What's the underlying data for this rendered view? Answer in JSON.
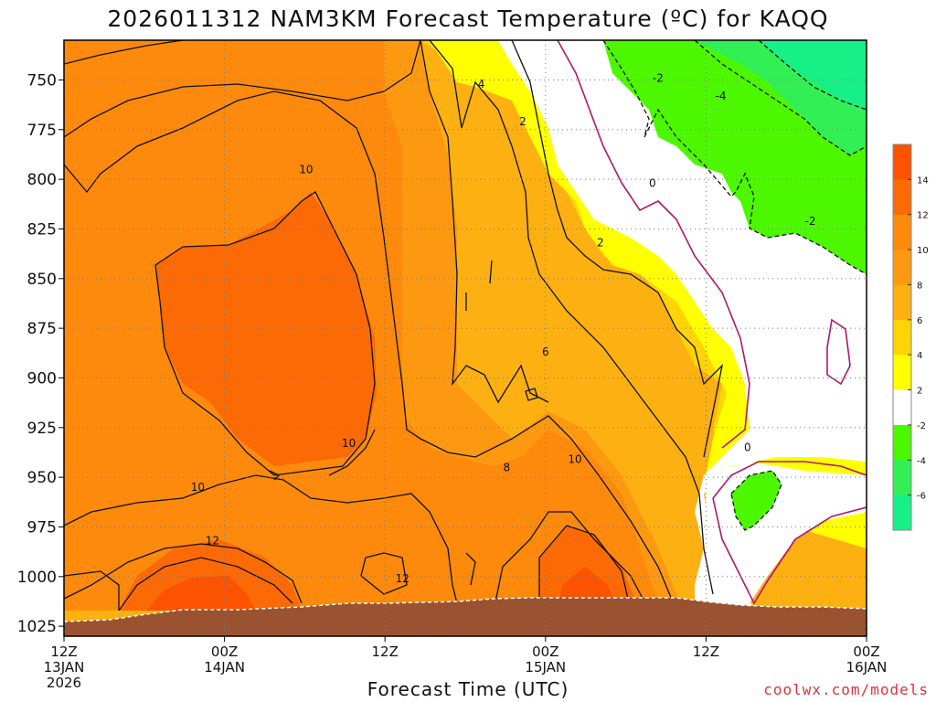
{
  "chart_data": {
    "type": "heatmap",
    "title": "2026011312 NAM3KM Forecast Temperature (ºC) for KAQQ",
    "xlabel": "Forecast Time (UTC)",
    "ylabel": "",
    "credit": "coolwx.com/models",
    "y_axis": {
      "range": [
        1030,
        730
      ],
      "ticks": [
        750,
        775,
        800,
        825,
        850,
        875,
        900,
        925,
        950,
        975,
        1000,
        1025
      ]
    },
    "x_axis": {
      "range_hours": [
        0,
        60
      ],
      "ticks": [
        {
          "hour": 0,
          "lines": [
            "12Z",
            "13JAN",
            "2026"
          ]
        },
        {
          "hour": 12,
          "lines": [
            "00Z",
            "14JAN"
          ]
        },
        {
          "hour": 24,
          "lines": [
            "12Z"
          ]
        },
        {
          "hour": 36,
          "lines": [
            "00Z",
            "15JAN"
          ]
        },
        {
          "hour": 48,
          "lines": [
            "12Z"
          ]
        },
        {
          "hour": 60,
          "lines": [
            "00Z",
            "16JAN"
          ]
        }
      ]
    },
    "colorbar": {
      "ticks": [
        14,
        12,
        10,
        8,
        6,
        4,
        2,
        -2,
        -4,
        -6
      ],
      "bins": [
        {
          "range": [
            14,
            16
          ],
          "color": "#fb5300"
        },
        {
          "range": [
            12,
            14
          ],
          "color": "#fc6a05"
        },
        {
          "range": [
            10,
            12
          ],
          "color": "#fd8a0c"
        },
        {
          "range": [
            8,
            10
          ],
          "color": "#fd9910"
        },
        {
          "range": [
            6,
            8
          ],
          "color": "#fdb011"
        },
        {
          "range": [
            4,
            6
          ],
          "color": "#fed406"
        },
        {
          "range": [
            2,
            4
          ],
          "color": "#ffff00"
        },
        {
          "range": [
            -2,
            2
          ],
          "color": "#ffffff"
        },
        {
          "range": [
            -4,
            -2
          ],
          "color": "#4cf700"
        },
        {
          "range": [
            -6,
            -4
          ],
          "color": "#32ef55"
        },
        {
          "range": [
            -8,
            -6
          ],
          "color": "#17f087"
        }
      ]
    },
    "contour_labels": [
      {
        "text": "4",
        "hour": 31.2,
        "p": 752
      },
      {
        "text": "2",
        "hour": 34.3,
        "p": 771
      },
      {
        "text": "-2",
        "hour": 44.4,
        "p": 749
      },
      {
        "text": "-4",
        "hour": 49.1,
        "p": 758
      },
      {
        "text": "10",
        "hour": 18.1,
        "p": 795
      },
      {
        "text": "0",
        "hour": 44.0,
        "p": 802
      },
      {
        "text": "-2",
        "hour": 55.8,
        "p": 821
      },
      {
        "text": "2",
        "hour": 40.1,
        "p": 832
      },
      {
        "text": "6",
        "hour": 36.0,
        "p": 887
      },
      {
        "text": "10",
        "hour": 21.3,
        "p": 933
      },
      {
        "text": "10",
        "hour": 38.2,
        "p": 941
      },
      {
        "text": "8",
        "hour": 33.1,
        "p": 945
      },
      {
        "text": "0",
        "hour": 51.1,
        "p": 935
      },
      {
        "text": "10",
        "hour": 10.0,
        "p": 955
      },
      {
        "text": "12",
        "hour": 11.1,
        "p": 982
      },
      {
        "text": "12",
        "hour": 25.3,
        "p": 1001
      }
    ]
  }
}
